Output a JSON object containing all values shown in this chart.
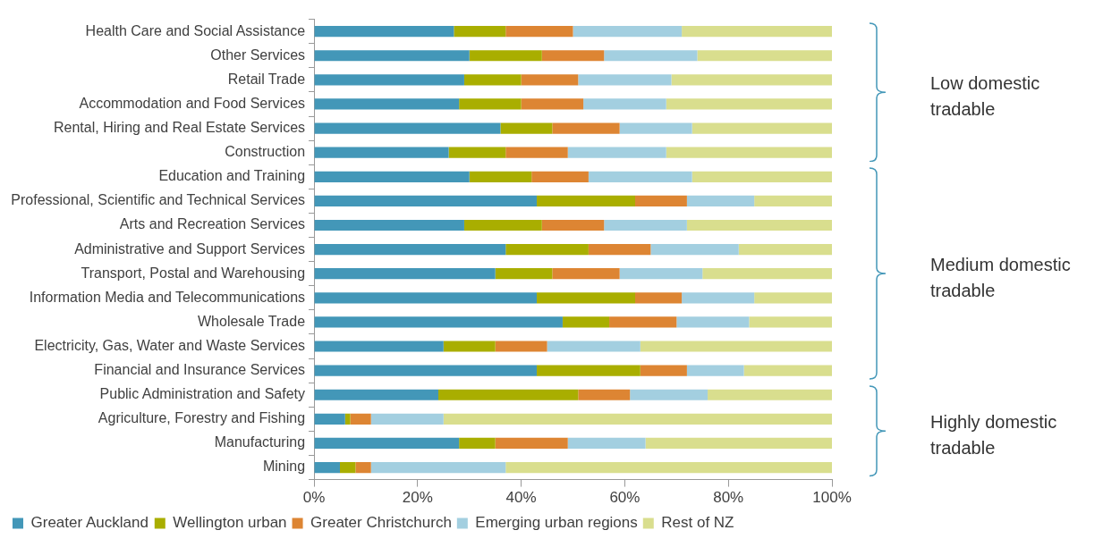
{
  "chart_data": {
    "type": "bar",
    "orientation": "horizontal",
    "stacked": true,
    "categories": [
      "Health Care and Social Assistance",
      "Other Services",
      "Retail Trade",
      "Accommodation and Food Services",
      "Rental, Hiring and Real Estate Services",
      "Construction",
      "Education and Training",
      "Professional, Scientific and Technical Services",
      "Arts and Recreation Services",
      "Administrative and Support Services",
      "Transport, Postal and Warehousing",
      "Information Media and Telecommunications",
      "Wholesale Trade",
      "Electricity, Gas, Water and Waste Services",
      "Financial and Insurance Services",
      "Public Administration and Safety",
      "Agriculture, Forestry and Fishing",
      "Manufacturing",
      "Mining"
    ],
    "series": [
      {
        "name": "Greater Auckland",
        "color": "#4397b8",
        "values": [
          27,
          30,
          29,
          28,
          36,
          26,
          30,
          43,
          29,
          37,
          35,
          43,
          48,
          25,
          43,
          24,
          6,
          28,
          5
        ]
      },
      {
        "name": "Wellington urban",
        "color": "#a9ae00",
        "values": [
          10,
          14,
          11,
          12,
          10,
          11,
          12,
          19,
          15,
          16,
          11,
          19,
          9,
          10,
          20,
          27,
          1,
          7,
          3
        ]
      },
      {
        "name": "Greater Christchurch",
        "color": "#dd8533",
        "values": [
          13,
          12,
          11,
          12,
          13,
          12,
          11,
          10,
          12,
          12,
          13,
          9,
          13,
          10,
          9,
          10,
          4,
          14,
          3
        ]
      },
      {
        "name": "Emerging urban regions",
        "color": "#a3cfe0",
        "values": [
          21,
          18,
          18,
          16,
          14,
          19,
          20,
          13,
          16,
          17,
          16,
          14,
          14,
          18,
          11,
          15,
          14,
          15,
          26
        ]
      },
      {
        "name": "Rest of NZ",
        "color": "#d9de8e",
        "values": [
          29,
          26,
          31,
          32,
          27,
          32,
          27,
          15,
          28,
          18,
          25,
          15,
          16,
          37,
          17,
          24,
          75,
          36,
          63
        ]
      }
    ],
    "xlim": [
      0,
      100
    ],
    "xticks": [
      {
        "value": 0,
        "label": "0%"
      },
      {
        "value": 20,
        "label": "20%"
      },
      {
        "value": 40,
        "label": "40%"
      },
      {
        "value": 60,
        "label": "60%"
      },
      {
        "value": 80,
        "label": "80%"
      },
      {
        "value": 100,
        "label": "100%"
      }
    ],
    "grid": false,
    "legend": "bottom left",
    "annotations": [
      "Low domestic tradable",
      "Medium domestic tradable",
      "Highly domestic tradable"
    ]
  }
}
